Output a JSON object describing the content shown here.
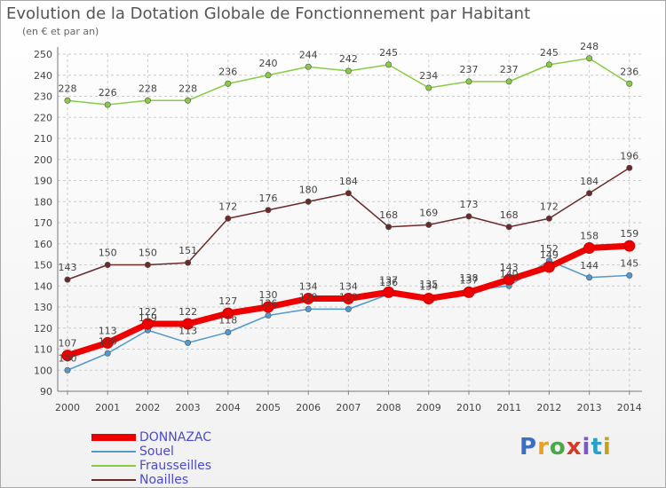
{
  "title": "Evolution de la Dotation Globale de Fonctionnement par Habitant",
  "subtitle": "(en € et par an)",
  "logo": "Proxiti",
  "chart_data": {
    "type": "line",
    "title": "Evolution de la Dotation Globale de Fonctionnement par Habitant",
    "subtitle": "(en € et par an)",
    "x": [
      "2000",
      "2001",
      "2002",
      "2003",
      "2004",
      "2005",
      "2006",
      "2007",
      "2008",
      "2009",
      "2010",
      "2011",
      "2012",
      "2013",
      "2014"
    ],
    "yticks": [
      90,
      100,
      110,
      120,
      130,
      140,
      150,
      160,
      170,
      180,
      190,
      200,
      210,
      220,
      230,
      240,
      250
    ],
    "ylim": [
      90,
      250
    ],
    "grid": true,
    "series": [
      {
        "name": "Frausseilles",
        "color": "#88cc44",
        "values": [
          228,
          226,
          228,
          228,
          236,
          240,
          244,
          242,
          245,
          234,
          237,
          237,
          245,
          248,
          236
        ]
      },
      {
        "name": "Noailles",
        "color": "#6b2a2a",
        "values": [
          143,
          150,
          150,
          151,
          172,
          176,
          180,
          184,
          168,
          169,
          173,
          168,
          172,
          184,
          196
        ]
      },
      {
        "name": "Souel",
        "color": "#5599cc",
        "values": [
          100,
          108,
          119,
          113,
          118,
          126,
          129,
          129,
          136,
          135,
          138,
          140,
          152,
          144,
          145
        ]
      },
      {
        "name": "DONNAZAC",
        "color": "#ee0000",
        "values": [
          107,
          113,
          122,
          122,
          127,
          130,
          134,
          134,
          137,
          134,
          137,
          143,
          149,
          158,
          159
        ]
      }
    ],
    "legend": [
      {
        "name": "DONNAZAC",
        "color": "#ee0000"
      },
      {
        "name": "Souel",
        "color": "#5599cc"
      },
      {
        "name": "Frausseilles",
        "color": "#88cc44"
      },
      {
        "name": "Noailles",
        "color": "#6b2a2a"
      }
    ]
  }
}
